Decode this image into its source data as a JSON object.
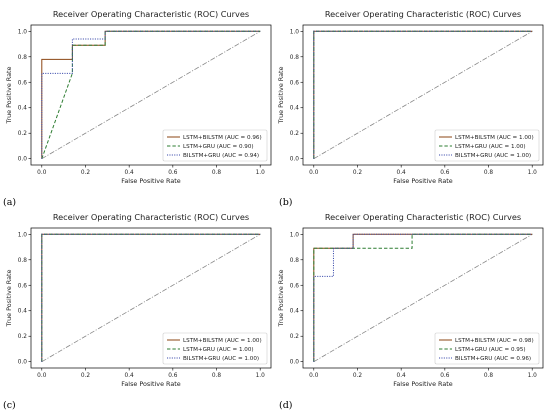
{
  "figure": {
    "line_colors": {
      "LSTM+BILSTM": "#8B4513",
      "LSTM+GRU": "#2E7D32",
      "BILSTM+GRU": "#3949AB",
      "overlap": "#9C27B0",
      "diagonal": "#888888"
    }
  },
  "chart_data": [
    {
      "panel_label": "(a)",
      "type": "line",
      "title": "Receiver Operating Characteristic (ROC) Curves",
      "xlabel": "False Positive Rate",
      "ylabel": "True Positive Rate",
      "xlim": [
        0,
        1
      ],
      "ylim": [
        0,
        1
      ],
      "xticks": [
        "0.0",
        "0.2",
        "0.4",
        "0.6",
        "0.8",
        "1.0"
      ],
      "yticks": [
        "0.0",
        "0.2",
        "0.4",
        "0.6",
        "0.8",
        "1.0"
      ],
      "grid": false,
      "legend_position": "lower-right",
      "diagonal": true,
      "series": [
        {
          "name": "LSTM+BILSTM",
          "label": "LSTM+BILSTM  (AUC = 0.96)",
          "style": "solid",
          "x": [
            0,
            0,
            0.14,
            0.14,
            0.29,
            0.29,
            1.0
          ],
          "y": [
            0,
            0.78,
            0.78,
            0.89,
            0.89,
            1.0,
            1.0
          ]
        },
        {
          "name": "LSTM+GRU",
          "label": "LSTM+GRU  (AUC = 0.90)",
          "style": "dashed",
          "x": [
            0,
            0.14,
            0.14,
            0.29,
            0.29,
            1.0
          ],
          "y": [
            0,
            0.67,
            0.89,
            0.89,
            1.0,
            1.0
          ]
        },
        {
          "name": "BILSTM+GRU",
          "label": "BILSTM+GRU  (AUC = 0.94)",
          "style": "dotted",
          "x": [
            0,
            0,
            0.14,
            0.14,
            0.29,
            0.29,
            1.0
          ],
          "y": [
            0,
            0.67,
            0.67,
            0.94,
            0.94,
            1.0,
            1.0
          ]
        }
      ]
    },
    {
      "panel_label": "(b)",
      "type": "line",
      "title": "Receiver Operating Characteristic (ROC) Curves",
      "xlabel": "False Positive Rate",
      "ylabel": "True Positive Rate",
      "xlim": [
        0,
        1
      ],
      "ylim": [
        0,
        1
      ],
      "xticks": [
        "0.0",
        "0.2",
        "0.4",
        "0.6",
        "0.8",
        "1.0"
      ],
      "yticks": [
        "0.0",
        "0.2",
        "0.4",
        "0.6",
        "0.8",
        "1.0"
      ],
      "grid": false,
      "legend_position": "lower-right",
      "diagonal": true,
      "series": [
        {
          "name": "LSTM+BILSTM",
          "label": "LSTM+BILSTM  (AUC = 1.00)",
          "style": "solid",
          "x": [
            0,
            0,
            1.0
          ],
          "y": [
            0,
            1.0,
            1.0
          ]
        },
        {
          "name": "LSTM+GRU",
          "label": "LSTM+GRU  (AUC = 1.00)",
          "style": "dashed",
          "x": [
            0,
            0,
            1.0
          ],
          "y": [
            0,
            1.0,
            1.0
          ]
        },
        {
          "name": "BILSTM+GRU",
          "label": "BILSTM+GRU  (AUC = 1.00)",
          "style": "dotted",
          "x": [
            0,
            0,
            1.0
          ],
          "y": [
            0,
            1.0,
            1.0
          ]
        }
      ]
    },
    {
      "panel_label": "(c)",
      "type": "line",
      "title": "Receiver Operating Characteristic (ROC) Curves",
      "xlabel": "False Positive Rate",
      "ylabel": "True Positive Rate",
      "xlim": [
        0,
        1
      ],
      "ylim": [
        0,
        1
      ],
      "xticks": [
        "0.0",
        "0.2",
        "0.4",
        "0.6",
        "0.8",
        "1.0"
      ],
      "yticks": [
        "0.0",
        "0.2",
        "0.4",
        "0.6",
        "0.8",
        "1.0"
      ],
      "grid": false,
      "legend_position": "lower-right",
      "diagonal": true,
      "series": [
        {
          "name": "LSTM+BILSTM",
          "label": "LSTM+BILSTM  (AUC = 1.00)",
          "style": "solid",
          "x": [
            0,
            0,
            1.0
          ],
          "y": [
            0,
            1.0,
            1.0
          ]
        },
        {
          "name": "LSTM+GRU",
          "label": "LSTM+GRU  (AUC = 1.00)",
          "style": "dashed",
          "x": [
            0,
            0,
            1.0
          ],
          "y": [
            0,
            1.0,
            1.0
          ]
        },
        {
          "name": "BILSTM+GRU",
          "label": "BILSTM+GRU  (AUC = 1.00)",
          "style": "dotted",
          "x": [
            0,
            0,
            1.0
          ],
          "y": [
            0,
            1.0,
            1.0
          ]
        }
      ]
    },
    {
      "panel_label": "(d)",
      "type": "line",
      "title": "Receiver Operating Characteristic (ROC) Curves",
      "xlabel": "False Positive Rate",
      "ylabel": "True Positive Rate",
      "xlim": [
        0,
        1
      ],
      "ylim": [
        0,
        1
      ],
      "xticks": [
        "0.0",
        "0.2",
        "0.4",
        "0.6",
        "0.8",
        "1.0"
      ],
      "yticks": [
        "0.0",
        "0.2",
        "0.4",
        "0.6",
        "0.8",
        "1.0"
      ],
      "grid": false,
      "legend_position": "lower-right",
      "diagonal": true,
      "series": [
        {
          "name": "LSTM+BILSTM",
          "label": "LSTM+BILSTM  (AUC = 0.98)",
          "style": "solid",
          "x": [
            0,
            0,
            0.18,
            0.18,
            1.0
          ],
          "y": [
            0,
            0.89,
            0.89,
            1.0,
            1.0
          ]
        },
        {
          "name": "LSTM+GRU",
          "label": "LSTM+GRU  (AUC = 0.95)",
          "style": "dashed",
          "x": [
            0,
            0,
            0.45,
            0.45,
            1.0
          ],
          "y": [
            0,
            0.89,
            0.89,
            1.0,
            1.0
          ]
        },
        {
          "name": "BILSTM+GRU",
          "label": "BILSTM+GRU  (AUC = 0.96)",
          "style": "dotted",
          "x": [
            0,
            0,
            0.09,
            0.09,
            0.18,
            0.18,
            1.0
          ],
          "y": [
            0,
            0.67,
            0.67,
            0.89,
            0.89,
            1.0,
            1.0
          ]
        }
      ]
    }
  ]
}
